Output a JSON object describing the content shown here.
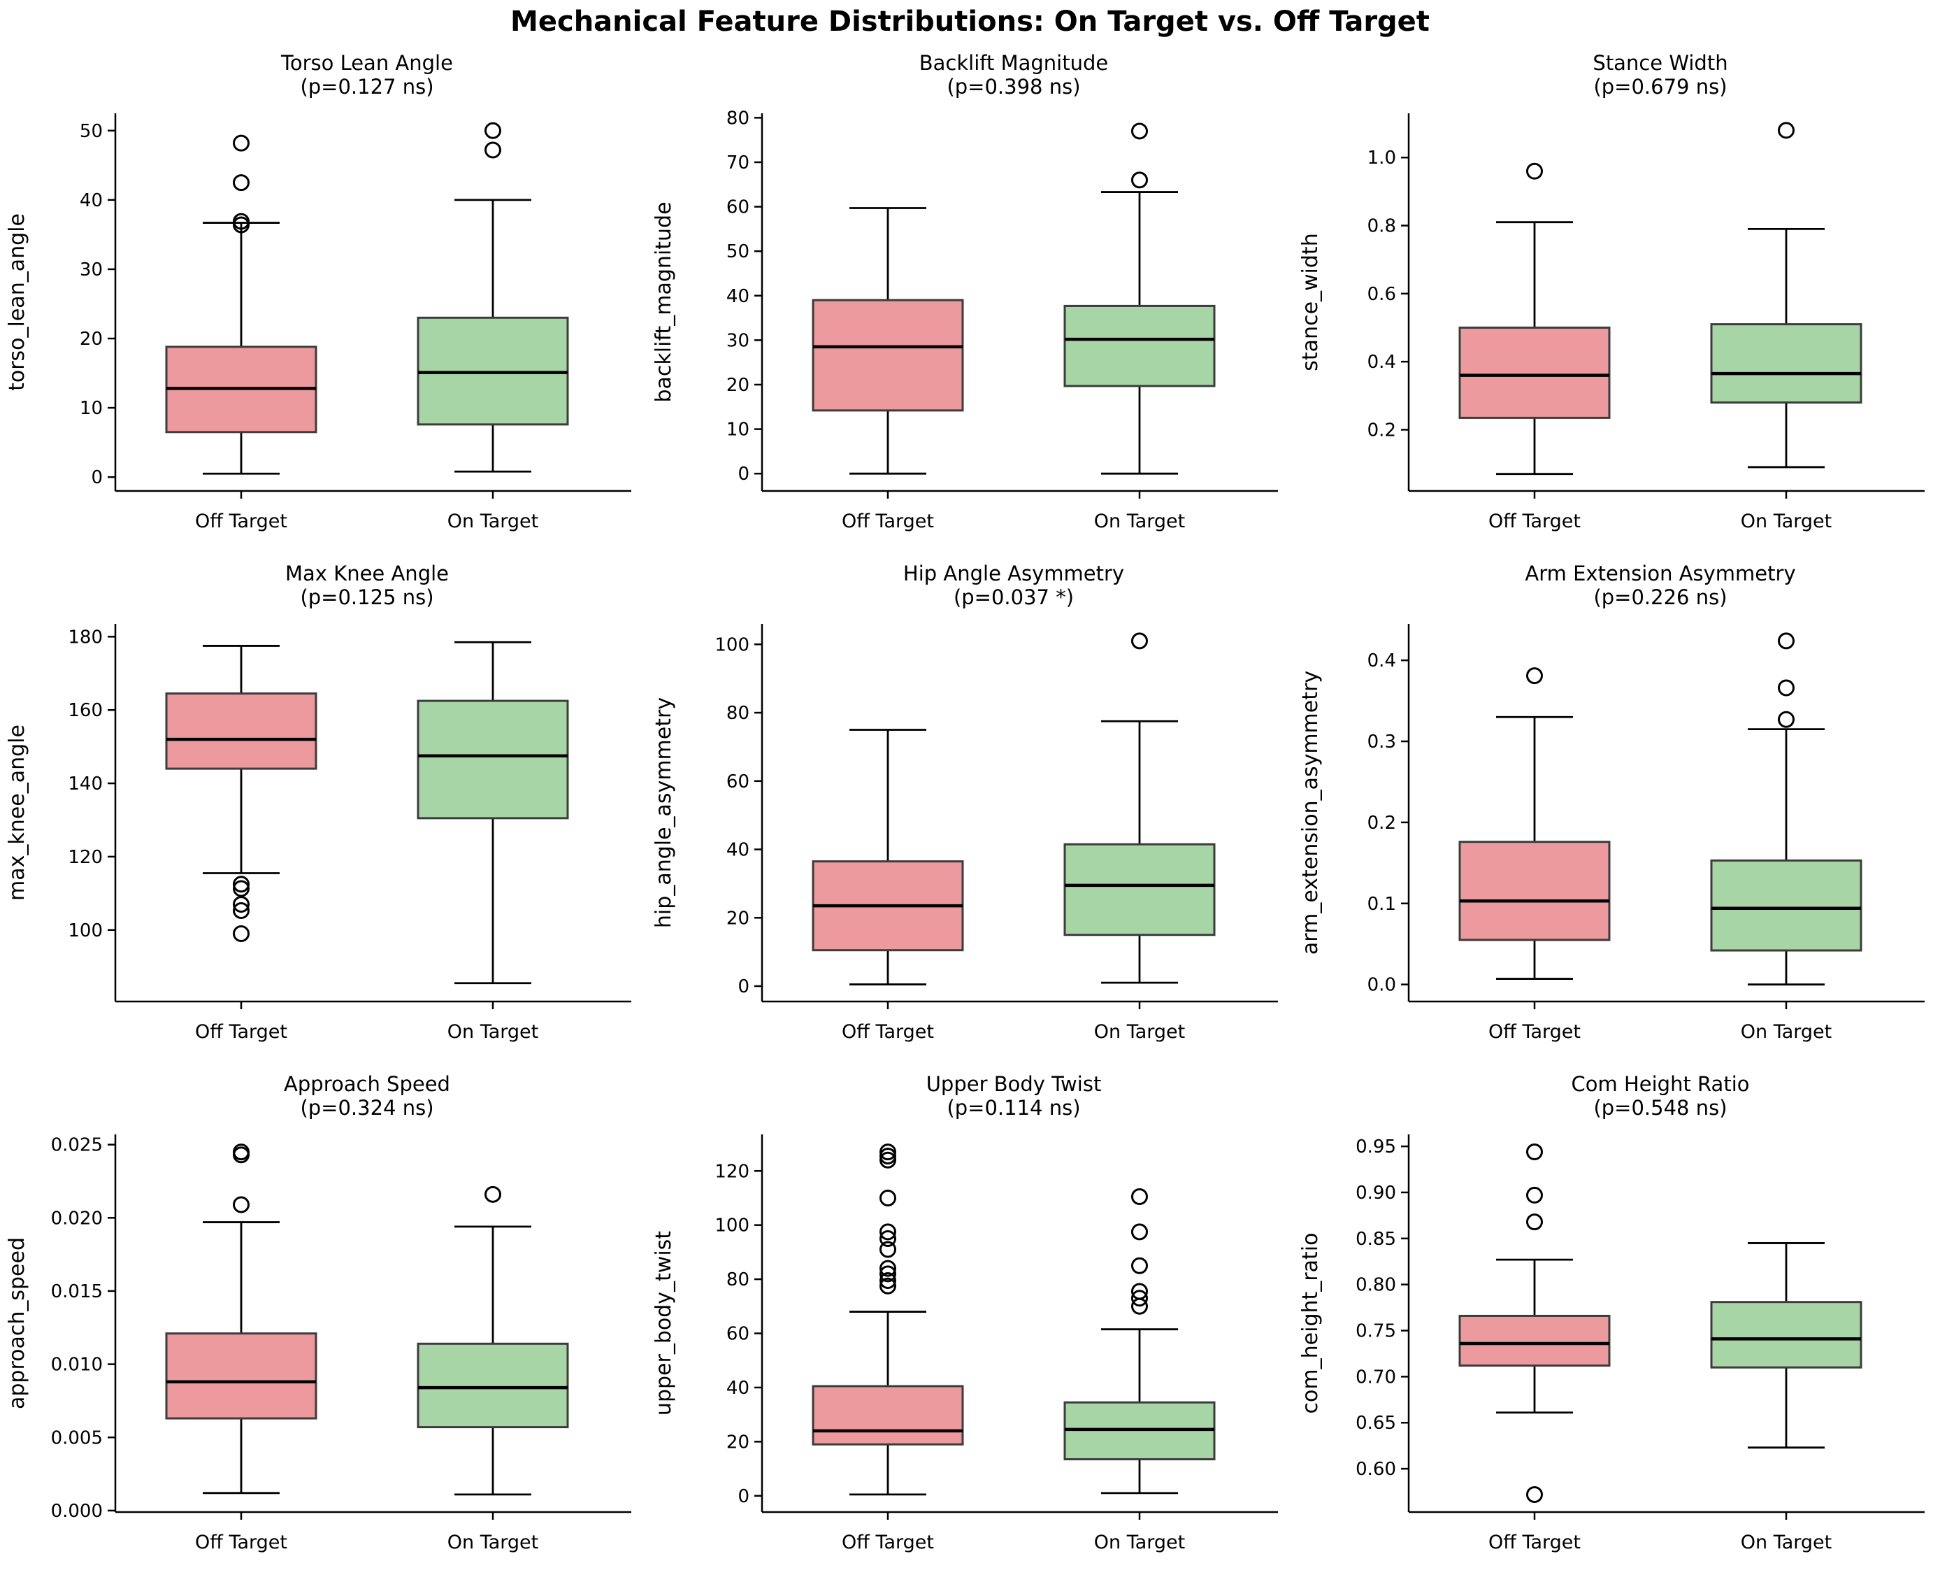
{
  "page_title": "Mechanical Feature Distributions: On Target vs. Off Target",
  "groups": [
    "Off Target",
    "On Target"
  ],
  "palette": {
    "off_target_fill": "#EC9A9E",
    "on_target_fill": "#A8D5A5",
    "box_edge": "#3C3C3C",
    "line": "#000000",
    "background": "#FFFFFF"
  },
  "chart_data": [
    {
      "type": "box",
      "title": "Torso Lean Angle",
      "subtitle": "(p=0.127 ns)",
      "ylabel": "torso_lean_angle",
      "ylim": [
        -2.0,
        52.5
      ],
      "ytick_values": [
        0,
        10,
        20,
        30,
        40,
        50
      ],
      "ytick_labels": [
        "0",
        "10",
        "20",
        "30",
        "40",
        "50"
      ],
      "series": [
        {
          "name": "Off Target",
          "whisker_low": 0.5,
          "q1": 6.5,
          "median": 12.8,
          "q3": 18.8,
          "whisker_high": 36.7,
          "outliers": [
            36.9,
            36.4,
            42.5,
            48.2
          ]
        },
        {
          "name": "On Target",
          "whisker_low": 0.8,
          "q1": 7.6,
          "median": 15.1,
          "q3": 23.0,
          "whisker_high": 40.0,
          "outliers": [
            47.2,
            50.0
          ]
        }
      ]
    },
    {
      "type": "box",
      "title": "Backlift Magnitude",
      "subtitle": "(p=0.398 ns)",
      "ylabel": "backlift_magnitude",
      "ylim": [
        -3.9,
        81.0
      ],
      "ytick_values": [
        0,
        10,
        20,
        30,
        40,
        50,
        60,
        70,
        80
      ],
      "ytick_labels": [
        "0",
        "10",
        "20",
        "30",
        "40",
        "50",
        "60",
        "70",
        "80"
      ],
      "series": [
        {
          "name": "Off Target",
          "whisker_low": 0.0,
          "q1": 14.2,
          "median": 28.5,
          "q3": 39.0,
          "whisker_high": 59.7,
          "outliers": []
        },
        {
          "name": "On Target",
          "whisker_low": 0.0,
          "q1": 19.7,
          "median": 30.2,
          "q3": 37.7,
          "whisker_high": 63.3,
          "outliers": [
            66.0,
            77.0
          ]
        }
      ]
    },
    {
      "type": "box",
      "title": "Stance Width",
      "subtitle": "(p=0.679 ns)",
      "ylabel": "stance_width",
      "ylim": [
        0.02,
        1.13
      ],
      "ytick_values": [
        0.2,
        0.4,
        0.6,
        0.8,
        1.0
      ],
      "ytick_labels": [
        "0.2",
        "0.4",
        "0.6",
        "0.8",
        "1.0"
      ],
      "series": [
        {
          "name": "Off Target",
          "whisker_low": 0.07,
          "q1": 0.235,
          "median": 0.36,
          "q3": 0.5,
          "whisker_high": 0.81,
          "outliers": [
            0.96
          ]
        },
        {
          "name": "On Target",
          "whisker_low": 0.09,
          "q1": 0.28,
          "median": 0.365,
          "q3": 0.51,
          "whisker_high": 0.79,
          "outliers": [
            1.08
          ]
        }
      ]
    },
    {
      "type": "box",
      "title": "Max Knee Angle",
      "subtitle": "(p=0.125 ns)",
      "ylabel": "max_knee_angle",
      "ylim": [
        80.5,
        183.5
      ],
      "ytick_values": [
        100,
        120,
        140,
        160,
        180
      ],
      "ytick_labels": [
        "100",
        "120",
        "140",
        "160",
        "180"
      ],
      "series": [
        {
          "name": "Off Target",
          "whisker_low": 115.5,
          "q1": 144.0,
          "median": 152.0,
          "q3": 164.5,
          "whisker_high": 177.5,
          "outliers": [
            112.5,
            111.3,
            107.0,
            105.3,
            99.0
          ]
        },
        {
          "name": "On Target",
          "whisker_low": 85.5,
          "q1": 130.5,
          "median": 147.5,
          "q3": 162.5,
          "whisker_high": 178.5,
          "outliers": []
        }
      ]
    },
    {
      "type": "box",
      "title": "Hip Angle Asymmetry",
      "subtitle": "(p=0.037 *)",
      "ylabel": "hip_angle_asymmetry",
      "ylim": [
        -4.5,
        106.0
      ],
      "ytick_values": [
        0,
        20,
        40,
        60,
        80,
        100
      ],
      "ytick_labels": [
        "0",
        "20",
        "40",
        "60",
        "80",
        "100"
      ],
      "series": [
        {
          "name": "Off Target",
          "whisker_low": 0.5,
          "q1": 10.5,
          "median": 23.5,
          "q3": 36.5,
          "whisker_high": 75.0,
          "outliers": []
        },
        {
          "name": "On Target",
          "whisker_low": 1.0,
          "q1": 15.0,
          "median": 29.5,
          "q3": 41.5,
          "whisker_high": 77.5,
          "outliers": [
            101.0
          ]
        }
      ]
    },
    {
      "type": "box",
      "title": "Arm Extension Asymmetry",
      "subtitle": "(p=0.226 ns)",
      "ylabel": "arm_extension_asymmetry",
      "ylim": [
        -0.021,
        0.445
      ],
      "ytick_values": [
        0.0,
        0.1,
        0.2,
        0.3,
        0.4
      ],
      "ytick_labels": [
        "0.0",
        "0.1",
        "0.2",
        "0.3",
        "0.4"
      ],
      "series": [
        {
          "name": "Off Target",
          "whisker_low": 0.007,
          "q1": 0.055,
          "median": 0.103,
          "q3": 0.176,
          "whisker_high": 0.33,
          "outliers": [
            0.381
          ]
        },
        {
          "name": "On Target",
          "whisker_low": 0.0,
          "q1": 0.042,
          "median": 0.094,
          "q3": 0.153,
          "whisker_high": 0.315,
          "outliers": [
            0.327,
            0.366,
            0.424
          ]
        }
      ]
    },
    {
      "type": "box",
      "title": "Approach Speed",
      "subtitle": "(p=0.324 ns)",
      "ylabel": "approach_speed",
      "ylim": [
        -0.0001,
        0.0257
      ],
      "ytick_values": [
        0.0,
        0.005,
        0.01,
        0.015,
        0.02,
        0.025
      ],
      "ytick_labels": [
        "0.000",
        "0.005",
        "0.010",
        "0.015",
        "0.020",
        "0.025"
      ],
      "series": [
        {
          "name": "Off Target",
          "whisker_low": 0.0012,
          "q1": 0.0063,
          "median": 0.0088,
          "q3": 0.0121,
          "whisker_high": 0.0197,
          "outliers": [
            0.0209,
            0.0243,
            0.0245
          ]
        },
        {
          "name": "On Target",
          "whisker_low": 0.0011,
          "q1": 0.0057,
          "median": 0.0084,
          "q3": 0.0114,
          "whisker_high": 0.0194,
          "outliers": [
            0.0216
          ]
        }
      ]
    },
    {
      "type": "box",
      "title": "Upper Body Twist",
      "subtitle": "(p=0.114 ns)",
      "ylabel": "upper_body_twist",
      "ylim": [
        -6.0,
        133.5
      ],
      "ytick_values": [
        0,
        20,
        40,
        60,
        80,
        100,
        120
      ],
      "ytick_labels": [
        "0",
        "20",
        "40",
        "60",
        "80",
        "100",
        "120"
      ],
      "series": [
        {
          "name": "Off Target",
          "whisker_low": 0.5,
          "q1": 19.0,
          "median": 24.0,
          "q3": 40.5,
          "whisker_high": 68.0,
          "outliers": [
            77.5,
            79.5,
            82.0,
            84.0,
            91.0,
            95.0,
            97.5,
            110.0,
            124.0,
            125.5,
            127.0
          ]
        },
        {
          "name": "On Target",
          "whisker_low": 1.0,
          "q1": 13.5,
          "median": 24.5,
          "q3": 34.5,
          "whisker_high": 61.5,
          "outliers": [
            70.0,
            73.0,
            75.5,
            85.0,
            97.5,
            110.5
          ]
        }
      ]
    },
    {
      "type": "box",
      "title": "Com Height Ratio",
      "subtitle": "(p=0.548 ns)",
      "ylabel": "com_height_ratio",
      "ylim": [
        0.553,
        0.963
      ],
      "ytick_values": [
        0.6,
        0.65,
        0.7,
        0.75,
        0.8,
        0.85,
        0.9,
        0.95
      ],
      "ytick_labels": [
        "0.60",
        "0.65",
        "0.70",
        "0.75",
        "0.80",
        "0.85",
        "0.90",
        "0.95"
      ],
      "series": [
        {
          "name": "Off Target",
          "whisker_low": 0.661,
          "q1": 0.712,
          "median": 0.736,
          "q3": 0.766,
          "whisker_high": 0.827,
          "outliers": [
            0.572,
            0.868,
            0.897,
            0.944
          ]
        },
        {
          "name": "On Target",
          "whisker_low": 0.623,
          "q1": 0.71,
          "median": 0.741,
          "q3": 0.781,
          "whisker_high": 0.845,
          "outliers": []
        }
      ]
    }
  ]
}
